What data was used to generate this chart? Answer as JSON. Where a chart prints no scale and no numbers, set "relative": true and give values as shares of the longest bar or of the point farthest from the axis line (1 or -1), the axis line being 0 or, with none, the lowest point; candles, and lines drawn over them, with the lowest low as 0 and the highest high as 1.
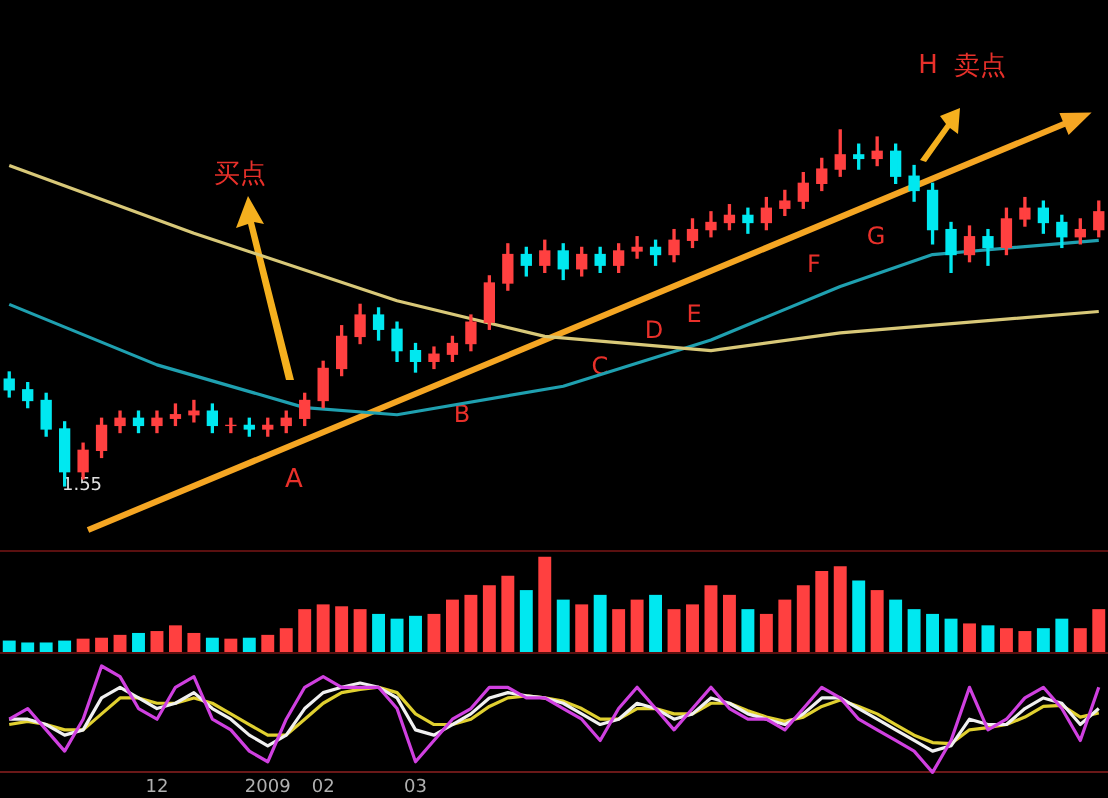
{
  "chart_data": [
    {
      "type": "candlestick",
      "relative": true,
      "tick_labels": false,
      "categories": [
        null,
        null,
        null,
        null,
        null,
        null,
        null,
        null,
        null,
        null,
        null,
        null,
        null,
        null,
        null,
        null,
        null,
        null,
        null,
        null,
        null,
        null,
        null,
        null,
        null,
        null,
        null,
        null,
        null,
        null,
        null,
        null,
        null,
        null,
        null,
        null,
        null,
        null,
        null,
        null,
        null,
        null,
        null,
        null,
        null,
        null,
        null,
        null,
        null,
        null,
        null,
        null,
        null,
        null,
        null,
        null,
        null,
        null,
        null,
        null
      ],
      "ohlc": [
        [
          0.3,
          0.32,
          0.25,
          0.27
        ],
        [
          0.27,
          0.29,
          0.22,
          0.24
        ],
        [
          0.24,
          0.26,
          0.14,
          0.16
        ],
        [
          0.16,
          0.18,
          0.0,
          0.04
        ],
        [
          0.04,
          0.12,
          0.02,
          0.1
        ],
        [
          0.1,
          0.19,
          0.08,
          0.17
        ],
        [
          0.17,
          0.21,
          0.15,
          0.19
        ],
        [
          0.19,
          0.21,
          0.15,
          0.17
        ],
        [
          0.17,
          0.21,
          0.15,
          0.19
        ],
        [
          0.19,
          0.23,
          0.17,
          0.2
        ],
        [
          0.2,
          0.24,
          0.18,
          0.21
        ],
        [
          0.21,
          0.23,
          0.15,
          0.17
        ],
        [
          0.17,
          0.19,
          0.15,
          0.17
        ],
        [
          0.17,
          0.19,
          0.14,
          0.16
        ],
        [
          0.16,
          0.19,
          0.14,
          0.17
        ],
        [
          0.17,
          0.21,
          0.15,
          0.19
        ],
        [
          0.19,
          0.26,
          0.17,
          0.24
        ],
        [
          0.24,
          0.35,
          0.22,
          0.33
        ],
        [
          0.33,
          0.45,
          0.31,
          0.42
        ],
        [
          0.42,
          0.51,
          0.4,
          0.48
        ],
        [
          0.48,
          0.5,
          0.41,
          0.44
        ],
        [
          0.44,
          0.46,
          0.35,
          0.38
        ],
        [
          0.38,
          0.4,
          0.32,
          0.35
        ],
        [
          0.35,
          0.39,
          0.33,
          0.37
        ],
        [
          0.37,
          0.42,
          0.35,
          0.4
        ],
        [
          0.4,
          0.48,
          0.38,
          0.46
        ],
        [
          0.46,
          0.59,
          0.44,
          0.57
        ],
        [
          0.57,
          0.68,
          0.55,
          0.65
        ],
        [
          0.65,
          0.67,
          0.59,
          0.62
        ],
        [
          0.62,
          0.69,
          0.6,
          0.66
        ],
        [
          0.66,
          0.68,
          0.58,
          0.61
        ],
        [
          0.61,
          0.67,
          0.59,
          0.65
        ],
        [
          0.65,
          0.67,
          0.6,
          0.62
        ],
        [
          0.62,
          0.68,
          0.6,
          0.66
        ],
        [
          0.66,
          0.7,
          0.64,
          0.67
        ],
        [
          0.67,
          0.69,
          0.62,
          0.65
        ],
        [
          0.65,
          0.72,
          0.63,
          0.69
        ],
        [
          0.69,
          0.75,
          0.67,
          0.72
        ],
        [
          0.72,
          0.77,
          0.7,
          0.74
        ],
        [
          0.74,
          0.79,
          0.72,
          0.76
        ],
        [
          0.76,
          0.78,
          0.71,
          0.74
        ],
        [
          0.74,
          0.81,
          0.72,
          0.78
        ],
        [
          0.78,
          0.83,
          0.76,
          0.8
        ],
        [
          0.8,
          0.88,
          0.78,
          0.85
        ],
        [
          0.85,
          0.92,
          0.83,
          0.89
        ],
        [
          0.89,
          1.0,
          0.87,
          0.93
        ],
        [
          0.93,
          0.96,
          0.89,
          0.92
        ],
        [
          0.92,
          0.98,
          0.9,
          0.94
        ],
        [
          0.94,
          0.96,
          0.85,
          0.87
        ],
        [
          0.87,
          0.9,
          0.8,
          0.83
        ],
        [
          0.83,
          0.85,
          0.68,
          0.72
        ],
        [
          0.72,
          0.74,
          0.6,
          0.65
        ],
        [
          0.65,
          0.73,
          0.63,
          0.7
        ],
        [
          0.7,
          0.72,
          0.62,
          0.67
        ],
        [
          0.67,
          0.78,
          0.65,
          0.75
        ],
        [
          0.75,
          0.81,
          0.73,
          0.78
        ],
        [
          0.78,
          0.8,
          0.71,
          0.74
        ],
        [
          0.74,
          0.76,
          0.67,
          0.7
        ],
        [
          0.7,
          0.75,
          0.68,
          0.72
        ],
        [
          0.72,
          0.8,
          0.7,
          0.77
        ]
      ],
      "colors": [
        "#00e8f0",
        "#00e8f0",
        "#00e8f0",
        "#00e8f0",
        "#ff4040",
        "#ff4040",
        "#ff4040",
        "#00e8f0",
        "#ff4040",
        "#ff4040",
        "#ff4040",
        "#00e8f0",
        "#ff4040",
        "#00e8f0",
        "#ff4040",
        "#ff4040",
        "#ff4040",
        "#ff4040",
        "#ff4040",
        "#ff4040",
        "#00e8f0",
        "#00e8f0",
        "#00e8f0",
        "#ff4040",
        "#ff4040",
        "#ff4040",
        "#ff4040",
        "#ff4040",
        "#00e8f0",
        "#ff4040",
        "#00e8f0",
        "#ff4040",
        "#00e8f0",
        "#ff4040",
        "#ff4040",
        "#00e8f0",
        "#ff4040",
        "#ff4040",
        "#ff4040",
        "#ff4040",
        "#00e8f0",
        "#ff4040",
        "#ff4040",
        "#ff4040",
        "#ff4040",
        "#ff4040",
        "#00e8f0",
        "#ff4040",
        "#00e8f0",
        "#00e8f0",
        "#00e8f0",
        "#00e8f0",
        "#ff4040",
        "#00e8f0",
        "#ff4040",
        "#ff4040",
        "#00e8f0",
        "#00e8f0",
        "#ff4040",
        "#ff4040"
      ],
      "series": [
        {
          "type": "line",
          "color": "#d8c878",
          "values": [
            0.9,
            null,
            null,
            null,
            null,
            null,
            null,
            null,
            null,
            null,
            0.71,
            null,
            null,
            null,
            null,
            null,
            null,
            null,
            null,
            null,
            null,
            0.52,
            null,
            null,
            null,
            null,
            null,
            null,
            null,
            0.42,
            null,
            null,
            null,
            null,
            null,
            null,
            null,
            null,
            0.38,
            null,
            null,
            null,
            null,
            null,
            null,
            0.43,
            null,
            null,
            null,
            null,
            null,
            null,
            null,
            null,
            null,
            null,
            null,
            null,
            null,
            0.49
          ]
        },
        {
          "type": "line",
          "color": "#1fa0b0",
          "values": [
            0.51,
            null,
            null,
            null,
            null,
            null,
            null,
            null,
            0.34,
            null,
            null,
            null,
            null,
            null,
            null,
            null,
            0.22,
            null,
            null,
            null,
            null,
            0.2,
            null,
            null,
            null,
            null,
            null,
            null,
            null,
            null,
            0.28,
            null,
            null,
            null,
            null,
            null,
            null,
            null,
            0.41,
            null,
            null,
            null,
            null,
            null,
            null,
            0.56,
            null,
            null,
            null,
            null,
            0.65,
            null,
            null,
            null,
            null,
            null,
            null,
            null,
            null,
            0.69
          ]
        }
      ],
      "annotations": [
        "买点",
        "A",
        "B",
        "C",
        "D",
        "E",
        "F",
        "G",
        "H",
        "卖点",
        "1.55"
      ]
    },
    {
      "type": "bar",
      "relative": true,
      "tick_labels": false,
      "categories": [
        null,
        null,
        null,
        null,
        null,
        null,
        null,
        null,
        null,
        null,
        null,
        null,
        null,
        null,
        null,
        null,
        null,
        null,
        null,
        null,
        null,
        null,
        null,
        null,
        null,
        null,
        null,
        null,
        null,
        null,
        null,
        null,
        null,
        null,
        null,
        null,
        null,
        null,
        null,
        null,
        null,
        null,
        null,
        null,
        null,
        null,
        null,
        null,
        null,
        null,
        null,
        null,
        null,
        null,
        null,
        null,
        null,
        null,
        null,
        null
      ],
      "values": [
        0.12,
        0.1,
        0.1,
        0.12,
        0.14,
        0.15,
        0.18,
        0.2,
        0.22,
        0.28,
        0.2,
        0.15,
        0.14,
        0.15,
        0.18,
        0.25,
        0.45,
        0.5,
        0.48,
        0.45,
        0.4,
        0.35,
        0.38,
        0.4,
        0.55,
        0.6,
        0.7,
        0.8,
        0.65,
        1.0,
        0.55,
        0.5,
        0.6,
        0.45,
        0.55,
        0.6,
        0.45,
        0.5,
        0.7,
        0.6,
        0.45,
        0.4,
        0.55,
        0.7,
        0.85,
        0.9,
        0.75,
        0.65,
        0.55,
        0.45,
        0.4,
        0.35,
        0.3,
        0.28,
        0.25,
        0.22,
        0.25,
        0.35,
        0.25,
        0.45
      ],
      "colors": [
        "#00e8f0",
        "#00e8f0",
        "#00e8f0",
        "#00e8f0",
        "#ff4040",
        "#ff4040",
        "#ff4040",
        "#00e8f0",
        "#ff4040",
        "#ff4040",
        "#ff4040",
        "#00e8f0",
        "#ff4040",
        "#00e8f0",
        "#ff4040",
        "#ff4040",
        "#ff4040",
        "#ff4040",
        "#ff4040",
        "#ff4040",
        "#00e8f0",
        "#00e8f0",
        "#00e8f0",
        "#ff4040",
        "#ff4040",
        "#ff4040",
        "#ff4040",
        "#ff4040",
        "#00e8f0",
        "#ff4040",
        "#00e8f0",
        "#ff4040",
        "#00e8f0",
        "#ff4040",
        "#ff4040",
        "#00e8f0",
        "#ff4040",
        "#ff4040",
        "#ff4040",
        "#ff4040",
        "#00e8f0",
        "#ff4040",
        "#ff4040",
        "#ff4040",
        "#ff4040",
        "#ff4040",
        "#00e8f0",
        "#ff4040",
        "#00e8f0",
        "#00e8f0",
        "#00e8f0",
        "#00e8f0",
        "#ff4040",
        "#00e8f0",
        "#ff4040",
        "#ff4040",
        "#00e8f0",
        "#00e8f0",
        "#ff4040",
        "#ff4040"
      ]
    },
    {
      "type": "line",
      "relative": true,
      "tick_labels": "x",
      "categories": [
        null,
        null,
        null,
        null,
        null,
        null,
        null,
        null,
        "12",
        null,
        null,
        null,
        null,
        null,
        "2009",
        null,
        null,
        "02",
        null,
        null,
        null,
        null,
        "03",
        null,
        null,
        null,
        null,
        null,
        null,
        null,
        null,
        null,
        null,
        null,
        null,
        null,
        null,
        null,
        null,
        null,
        null,
        null,
        null,
        null,
        null,
        null,
        null,
        null,
        null,
        null,
        null,
        null,
        null,
        null,
        null,
        null,
        null,
        null,
        null,
        null
      ],
      "series": [
        {
          "color": "#d040e0",
          "values": [
            0.5,
            0.6,
            0.4,
            0.2,
            0.5,
            1.0,
            0.9,
            0.6,
            0.5,
            0.8,
            0.9,
            0.5,
            0.4,
            0.2,
            0.1,
            0.5,
            0.8,
            0.9,
            0.8,
            0.8,
            0.8,
            0.6,
            0.1,
            0.3,
            0.5,
            0.6,
            0.8,
            0.8,
            0.7,
            0.7,
            0.6,
            0.5,
            0.3,
            0.6,
            0.8,
            0.6,
            0.4,
            0.6,
            0.8,
            0.6,
            0.5,
            0.5,
            0.4,
            0.6,
            0.8,
            0.7,
            0.5,
            0.4,
            0.3,
            0.2,
            0.0,
            0.3,
            0.8,
            0.4,
            0.5,
            0.7,
            0.8,
            0.6,
            0.3,
            0.8
          ]
        },
        {
          "color": "#f0f0f0",
          "values": [
            0.5,
            0.5,
            0.45,
            0.35,
            0.4,
            0.7,
            0.8,
            0.7,
            0.6,
            0.65,
            0.75,
            0.6,
            0.5,
            0.35,
            0.25,
            0.35,
            0.6,
            0.75,
            0.8,
            0.84,
            0.8,
            0.7,
            0.4,
            0.35,
            0.45,
            0.55,
            0.7,
            0.75,
            0.72,
            0.7,
            0.65,
            0.55,
            0.45,
            0.5,
            0.65,
            0.6,
            0.5,
            0.55,
            0.7,
            0.65,
            0.55,
            0.5,
            0.45,
            0.55,
            0.7,
            0.7,
            0.6,
            0.5,
            0.4,
            0.3,
            0.2,
            0.25,
            0.5,
            0.45,
            0.45,
            0.6,
            0.7,
            0.65,
            0.45,
            0.6
          ]
        },
        {
          "color": "#e0d030",
          "values": [
            0.45,
            0.48,
            0.45,
            0.4,
            0.4,
            0.55,
            0.7,
            0.7,
            0.65,
            0.65,
            0.7,
            0.65,
            0.55,
            0.45,
            0.35,
            0.35,
            0.5,
            0.65,
            0.75,
            0.78,
            0.8,
            0.75,
            0.55,
            0.45,
            0.45,
            0.5,
            0.62,
            0.7,
            0.72,
            0.7,
            0.67,
            0.6,
            0.5,
            0.5,
            0.6,
            0.6,
            0.55,
            0.55,
            0.65,
            0.65,
            0.58,
            0.52,
            0.48,
            0.52,
            0.62,
            0.68,
            0.62,
            0.55,
            0.45,
            0.35,
            0.28,
            0.27,
            0.4,
            0.42,
            0.45,
            0.52,
            0.62,
            0.63,
            0.52,
            0.56
          ]
        }
      ]
    }
  ]
}
